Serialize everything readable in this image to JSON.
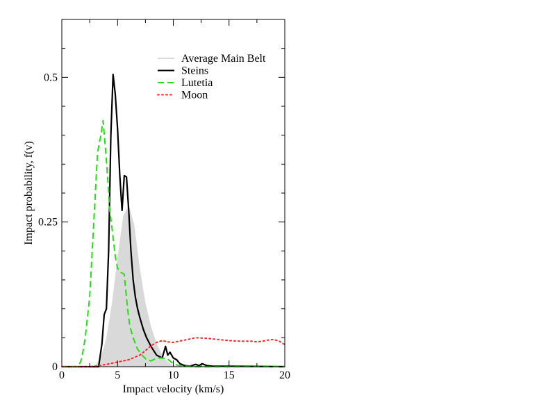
{
  "chart_data": {
    "type": "line",
    "xlabel": "Impact velocity (km/s)",
    "ylabel": "Impact probability, f(v)",
    "xlim": [
      0,
      20
    ],
    "ylim": [
      0,
      0.6
    ],
    "x_ticks": [
      0,
      5,
      10,
      15,
      20
    ],
    "x_tick_labels": [
      "0",
      "5",
      "10",
      "15",
      "20"
    ],
    "y_ticks": [
      0,
      0.25,
      0.5
    ],
    "y_tick_labels": [
      "0",
      "0.25",
      "0.5"
    ],
    "grid": false,
    "legend_position": "top-right",
    "series": [
      {
        "name": "Average Main Belt",
        "style": "filled-area",
        "color": "#d9d9d9",
        "x": [
          0,
          2.5,
          3.0,
          3.5,
          4.0,
          4.5,
          5.0,
          5.5,
          6.0,
          6.5,
          7.0,
          7.5,
          8.0,
          8.5,
          9.0,
          9.5,
          10.0,
          20
        ],
        "y": [
          0,
          0,
          0.003,
          0.015,
          0.05,
          0.11,
          0.19,
          0.26,
          0.28,
          0.245,
          0.17,
          0.11,
          0.07,
          0.04,
          0.02,
          0.008,
          0.002,
          0
        ]
      },
      {
        "name": "Steins",
        "style": "solid",
        "color": "#000000",
        "x": [
          0,
          3.3,
          3.6,
          3.8,
          4.0,
          4.2,
          4.4,
          4.6,
          4.8,
          5.0,
          5.2,
          5.4,
          5.6,
          5.8,
          6.0,
          6.2,
          6.4,
          6.6,
          6.8,
          7.0,
          7.3,
          7.6,
          8.0,
          8.5,
          9.0,
          9.3,
          9.5,
          9.7,
          10.0,
          10.3,
          10.6,
          11.0,
          11.5,
          12.0,
          12.3,
          12.6,
          13.0,
          13.5,
          20
        ],
        "y": [
          0,
          0,
          0.04,
          0.09,
          0.1,
          0.2,
          0.4,
          0.505,
          0.47,
          0.41,
          0.33,
          0.27,
          0.33,
          0.328,
          0.27,
          0.2,
          0.15,
          0.12,
          0.1,
          0.085,
          0.065,
          0.05,
          0.035,
          0.02,
          0.015,
          0.035,
          0.02,
          0.025,
          0.015,
          0.012,
          0.005,
          0.002,
          0.001,
          0.004,
          0.002,
          0.005,
          0.002,
          0.001,
          0
        ]
      },
      {
        "name": "Lutetia",
        "style": "dashed",
        "color": "#22e010",
        "x": [
          0,
          1.5,
          1.8,
          2.1,
          2.5,
          2.9,
          3.2,
          3.5,
          3.7,
          3.9,
          4.1,
          4.3,
          4.5,
          4.8,
          5.0,
          5.3,
          5.6,
          5.9,
          6.1,
          6.4,
          6.8,
          7.2,
          7.6,
          8.0,
          8.5,
          9.0,
          9.5,
          10.0,
          10.5,
          11.0,
          12.0,
          20
        ],
        "y": [
          0,
          0,
          0.015,
          0.05,
          0.12,
          0.26,
          0.37,
          0.4,
          0.425,
          0.38,
          0.33,
          0.27,
          0.24,
          0.19,
          0.17,
          0.163,
          0.16,
          0.1,
          0.07,
          0.05,
          0.03,
          0.02,
          0.012,
          0.01,
          0.015,
          0.015,
          0.013,
          0.005,
          0.002,
          0.001,
          0,
          0
        ]
      },
      {
        "name": "Moon",
        "style": "dotted",
        "color": "#ff2020",
        "x": [
          0,
          2.5,
          3,
          4,
          5,
          6,
          7,
          7.5,
          8,
          8.5,
          9,
          9.5,
          10,
          11,
          12,
          13,
          14,
          15,
          16,
          17,
          17.5,
          18,
          18.5,
          19,
          19.5,
          20
        ],
        "y": [
          0,
          0,
          0.001,
          0.004,
          0.008,
          0.012,
          0.02,
          0.028,
          0.036,
          0.042,
          0.045,
          0.043,
          0.042,
          0.046,
          0.05,
          0.049,
          0.047,
          0.045,
          0.044,
          0.044,
          0.043,
          0.044,
          0.046,
          0.047,
          0.044,
          0.038
        ]
      }
    ]
  }
}
